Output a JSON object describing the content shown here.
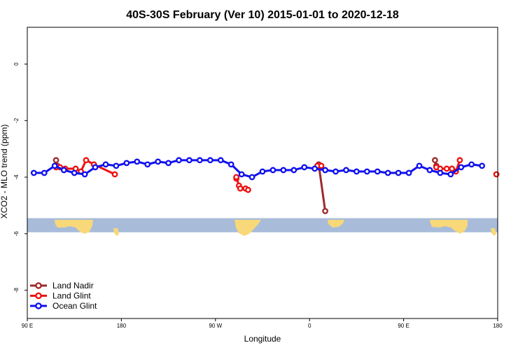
{
  "chart_data": {
    "type": "line",
    "title": "40S-30S February (Ver 10)   2015-01-01 to 2020-12-18",
    "xlabel": "Longitude",
    "ylabel": "XCO2 - MLO trend (ppm)",
    "xlim": [
      90,
      450
    ],
    "ylim": [
      -9,
      1.3
    ],
    "x_ticks": [
      {
        "value": 90,
        "label": "90 E"
      },
      {
        "value": 162,
        "label": "180"
      },
      {
        "value": 234,
        "label": "90 W"
      },
      {
        "value": 306,
        "label": "0"
      },
      {
        "value": 378,
        "label": "90 E"
      },
      {
        "value": 450,
        "label": "180"
      }
    ],
    "y_ticks": [
      {
        "value": 0,
        "label": "0"
      },
      {
        "value": -2,
        "label": "-2"
      },
      {
        "value": -4,
        "label": "-4"
      },
      {
        "value": -6,
        "label": "-6"
      },
      {
        "value": -8,
        "label": "-8"
      }
    ],
    "map_strip": {
      "y_top": -5.45,
      "y_bottom": -5.95,
      "ocean_color": "#a8bcda",
      "land_color": "#f8d878"
    },
    "legend_position": "bottom-left",
    "series": [
      {
        "name": "Land Nadir",
        "color": "#9e2a2b",
        "segments": [
          [
            [
              112,
              -3.4
            ],
            [
              113,
              -3.6
            ]
          ],
          [
            [
              313,
              -3.55
            ],
            [
              318,
              -5.2
            ]
          ],
          [
            [
              402,
              -3.4
            ],
            [
              403,
              -3.6
            ]
          ]
        ]
      },
      {
        "name": "Land Glint",
        "color": "#ee1111",
        "segments": [
          [
            [
              112,
              -3.65
            ],
            [
              115,
              -3.65
            ],
            [
              119,
              -3.7
            ],
            [
              127,
              -3.7
            ],
            [
              131,
              -3.8
            ],
            [
              135,
              -3.4
            ],
            [
              141,
              -3.55
            ],
            [
              157,
              -3.9
            ]
          ],
          [
            [
              250,
              -4.05
            ],
            [
              250,
              -4.0
            ],
            [
              252,
              -4.3
            ],
            [
              253,
              -4.4
            ],
            [
              257,
              -4.4
            ],
            [
              259,
              -4.45
            ]
          ],
          [
            [
              312,
              -3.6
            ],
            [
              315,
              -3.6
            ]
          ],
          [
            [
              403,
              -3.65
            ],
            [
              406,
              -3.7
            ],
            [
              411,
              -3.7
            ],
            [
              415,
              -3.7
            ],
            [
              418,
              -3.8
            ],
            [
              421,
              -3.4
            ]
          ],
          [
            [
              449,
              -3.9
            ]
          ]
        ]
      },
      {
        "name": "Ocean Glint",
        "color": "#1010ee",
        "segments": [
          [
            [
              95,
              -3.85
            ],
            [
              103,
              -3.85
            ],
            [
              111,
              -3.6
            ],
            [
              118,
              -3.75
            ],
            [
              126,
              -3.85
            ],
            [
              134,
              -3.9
            ],
            [
              142,
              -3.65
            ],
            [
              150,
              -3.55
            ],
            [
              158,
              -3.6
            ],
            [
              166,
              -3.5
            ],
            [
              174,
              -3.45
            ],
            [
              182,
              -3.55
            ],
            [
              190,
              -3.45
            ],
            [
              198,
              -3.5
            ],
            [
              206,
              -3.4
            ],
            [
              214,
              -3.4
            ],
            [
              222,
              -3.4
            ],
            [
              230,
              -3.4
            ],
            [
              238,
              -3.4
            ],
            [
              246,
              -3.55
            ],
            [
              254,
              -3.9
            ],
            [
              262,
              -4.0
            ],
            [
              270,
              -3.8
            ],
            [
              278,
              -3.75
            ],
            [
              286,
              -3.75
            ],
            [
              294,
              -3.75
            ],
            [
              302,
              -3.65
            ],
            [
              310,
              -3.7
            ],
            [
              318,
              -3.75
            ],
            [
              326,
              -3.8
            ],
            [
              334,
              -3.75
            ],
            [
              342,
              -3.8
            ],
            [
              350,
              -3.8
            ],
            [
              358,
              -3.8
            ],
            [
              366,
              -3.85
            ],
            [
              374,
              -3.85
            ],
            [
              382,
              -3.85
            ],
            [
              390,
              -3.6
            ],
            [
              398,
              -3.75
            ],
            [
              406,
              -3.85
            ],
            [
              414,
              -3.9
            ],
            [
              422,
              -3.65
            ],
            [
              430,
              -3.55
            ],
            [
              438,
              -3.6
            ]
          ]
        ]
      }
    ]
  }
}
